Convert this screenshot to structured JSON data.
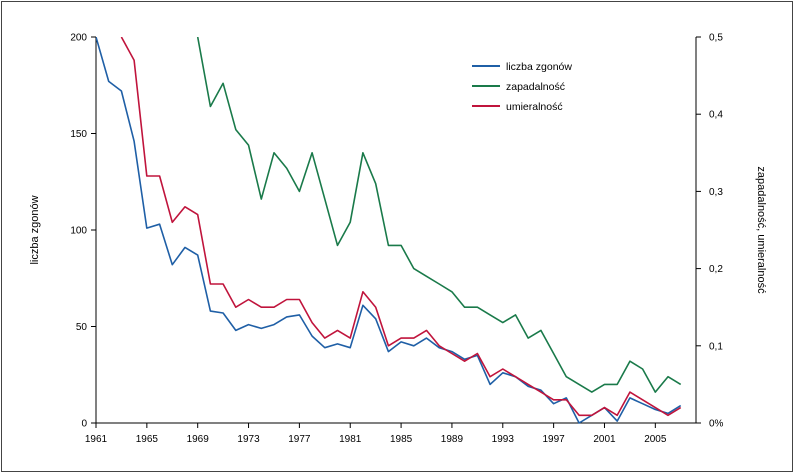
{
  "chart_data": {
    "type": "line",
    "title": "",
    "xlabel": "",
    "ylabel": "liczba zgonów",
    "y2label": "zapadalność, umieralność",
    "x": [
      1961,
      1962,
      1963,
      1964,
      1965,
      1966,
      1967,
      1968,
      1969,
      1970,
      1971,
      1972,
      1973,
      1974,
      1975,
      1976,
      1977,
      1978,
      1979,
      1980,
      1981,
      1982,
      1983,
      1984,
      1985,
      1986,
      1987,
      1988,
      1989,
      1990,
      1991,
      1992,
      1993,
      1994,
      1995,
      1996,
      1997,
      1998,
      1999,
      2000,
      2001,
      2002,
      2003,
      2004,
      2005,
      2006,
      2007
    ],
    "xticks": [
      "1961",
      "1965",
      "1969",
      "1973",
      "1977",
      "1981",
      "1985",
      "1989",
      "1993",
      "1997",
      "2001",
      "2005"
    ],
    "xtick_values": [
      1961,
      1965,
      1969,
      1973,
      1977,
      1981,
      1985,
      1989,
      1993,
      1997,
      2001,
      2005
    ],
    "xlim": [
      1961,
      2008.2
    ],
    "ylim": [
      0,
      200
    ],
    "yticks": [
      "0",
      "50",
      "100",
      "150",
      "200"
    ],
    "y2lim": [
      0,
      0.5
    ],
    "y2ticks": [
      "0%",
      "0,1",
      "0,2",
      "0,3",
      "0,4",
      "0,5"
    ],
    "legend_position": "top-right",
    "grid": false,
    "series": [
      {
        "name": "liczba zgonów",
        "axis": "left",
        "color": "#1f5fa6",
        "values": [
          200,
          177,
          172,
          146,
          101,
          103,
          82,
          91,
          87,
          58,
          57,
          48,
          51,
          49,
          51,
          55,
          56,
          45,
          39,
          41,
          39,
          61,
          54,
          37,
          42,
          40,
          44,
          39,
          37,
          33,
          35,
          20,
          26,
          24,
          19,
          17,
          10,
          13,
          0,
          4,
          8,
          1,
          13,
          10,
          7,
          5,
          9
        ]
      },
      {
        "name": "zapadalność",
        "axis": "right",
        "color": "#1a7a4a",
        "values": [
          null,
          null,
          null,
          null,
          null,
          null,
          null,
          null,
          0.5,
          0.41,
          0.44,
          0.38,
          0.36,
          0.29,
          0.35,
          0.33,
          0.3,
          0.35,
          0.29,
          0.23,
          0.26,
          0.35,
          0.31,
          0.23,
          0.23,
          0.2,
          0.19,
          0.18,
          0.17,
          0.15,
          0.15,
          0.14,
          0.13,
          0.14,
          0.11,
          0.12,
          0.09,
          0.06,
          0.05,
          0.04,
          0.05,
          0.05,
          0.08,
          0.07,
          0.04,
          0.06,
          0.05
        ]
      },
      {
        "name": "umieralność",
        "axis": "right",
        "color": "#c0143c",
        "values": [
          null,
          null,
          0.5,
          0.47,
          0.32,
          0.32,
          0.26,
          0.28,
          0.27,
          0.18,
          0.18,
          0.15,
          0.16,
          0.15,
          0.15,
          0.16,
          0.16,
          0.13,
          0.11,
          0.12,
          0.11,
          0.17,
          0.15,
          0.1,
          0.11,
          0.11,
          0.12,
          0.1,
          0.09,
          0.08,
          0.09,
          0.06,
          0.07,
          0.06,
          0.05,
          0.04,
          0.03,
          0.03,
          0.01,
          0.01,
          0.02,
          0.01,
          0.04,
          0.03,
          0.02,
          0.01,
          0.02
        ]
      }
    ]
  }
}
